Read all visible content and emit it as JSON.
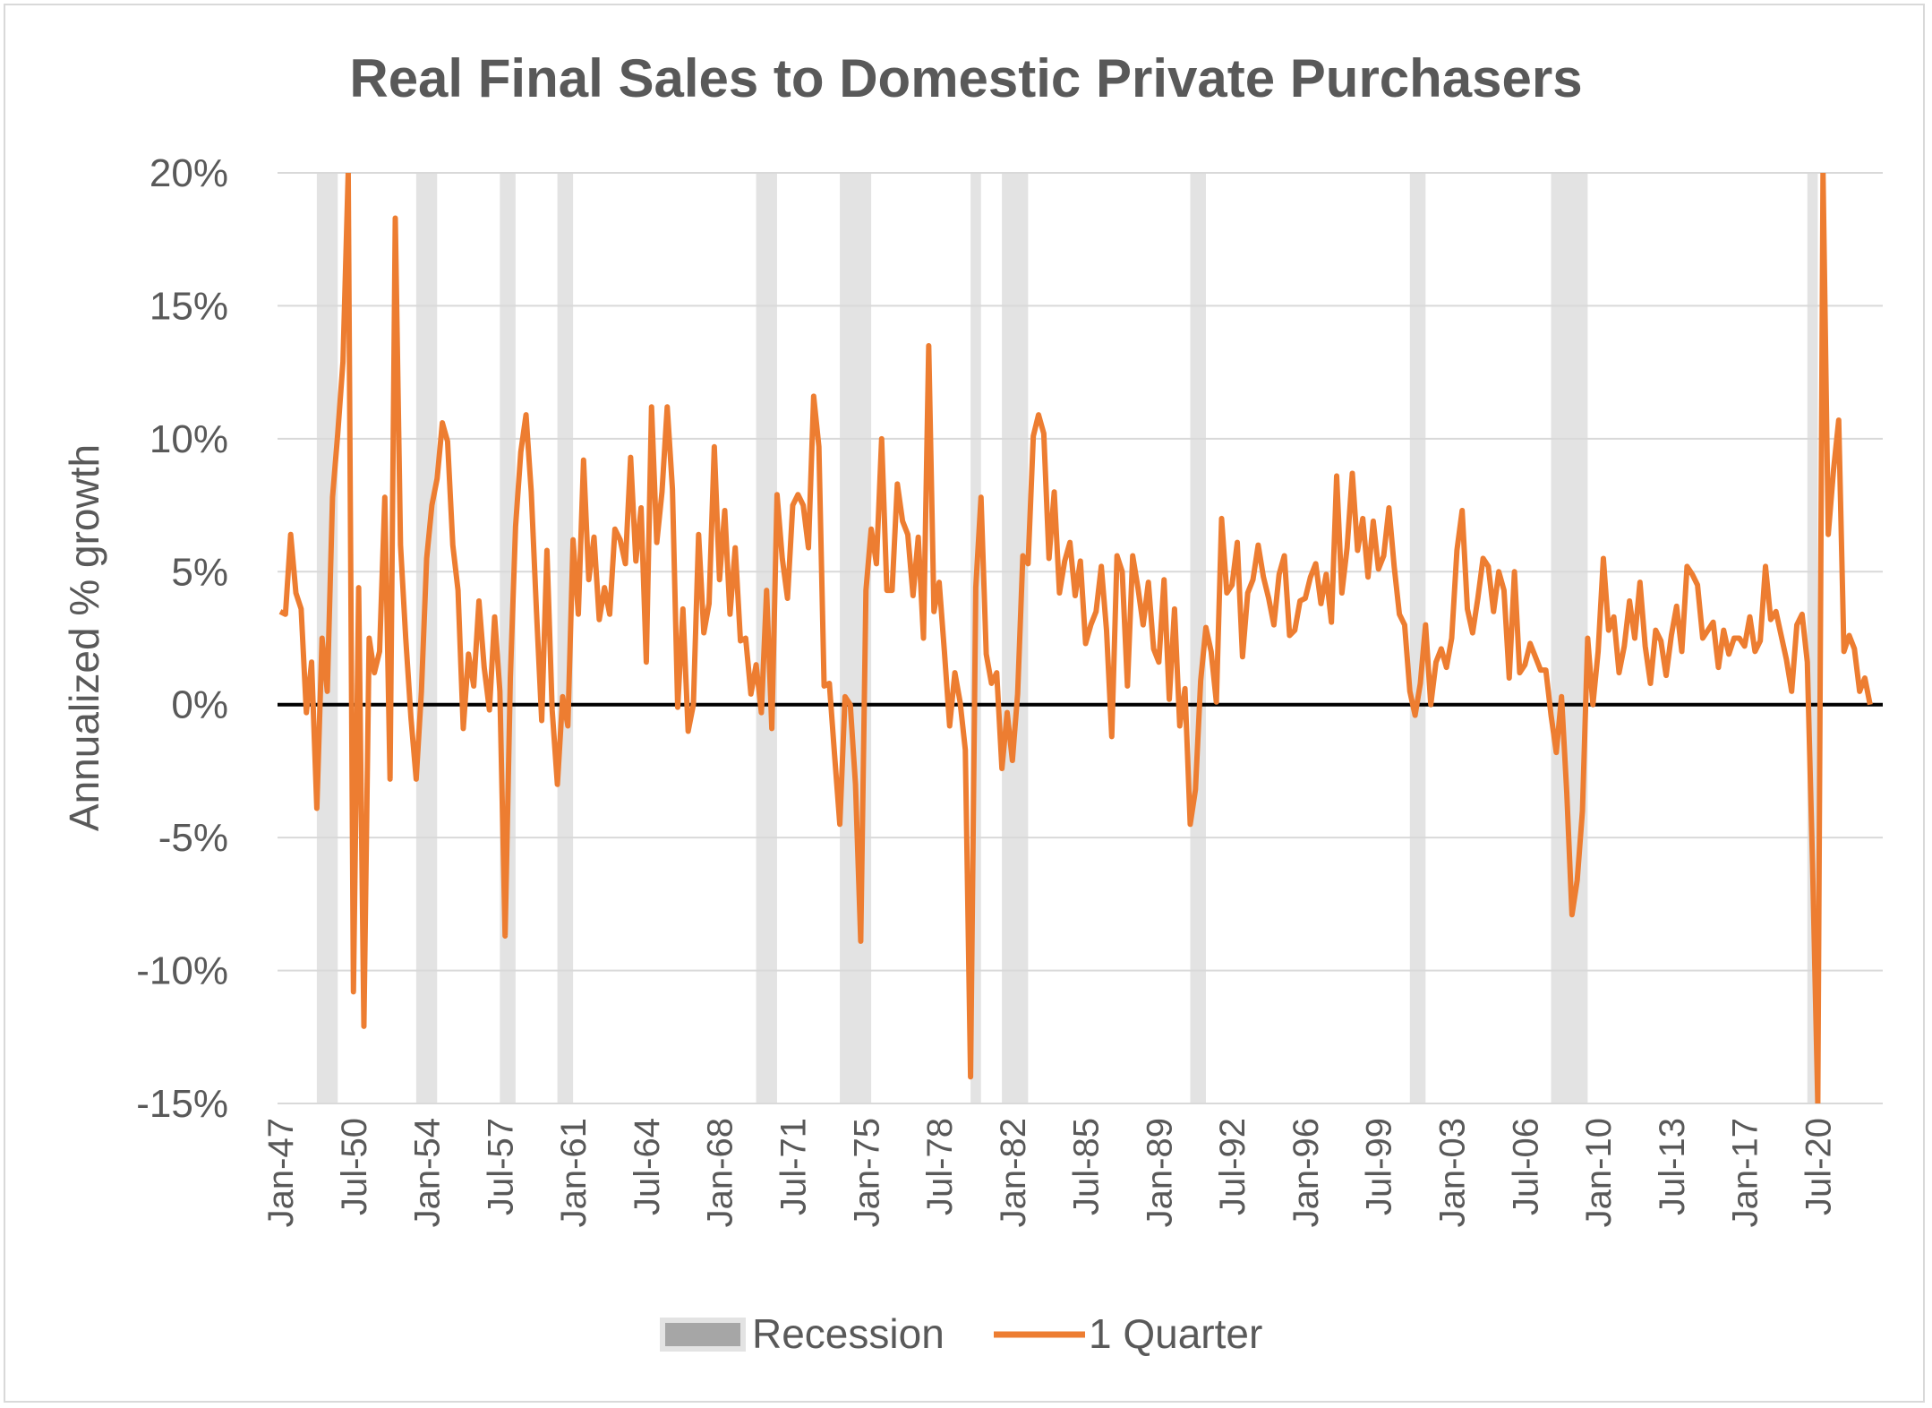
{
  "chart_data": {
    "type": "line",
    "title": "Real Final Sales to Domestic Private Purchasers",
    "xlabel": "",
    "ylabel": "Annualized % growth",
    "ylim": [
      -15,
      20
    ],
    "y_ticks": [
      20,
      15,
      10,
      5,
      0,
      -5,
      -10,
      -15
    ],
    "y_tick_labels": [
      "20%",
      "15%",
      "10%",
      "5%",
      "0%",
      "-5%",
      "-10%",
      "-15%"
    ],
    "x_start_year": 1947,
    "x_end_year": 2022.75,
    "x_ticks": [
      {
        "label": "Jan-47",
        "year": 1947.0
      },
      {
        "label": "Jul-50",
        "year": 1950.5
      },
      {
        "label": "Jan-54",
        "year": 1954.0
      },
      {
        "label": "Jul-57",
        "year": 1957.5
      },
      {
        "label": "Jan-61",
        "year": 1961.0
      },
      {
        "label": "Jul-64",
        "year": 1964.5
      },
      {
        "label": "Jan-68",
        "year": 1968.0
      },
      {
        "label": "Jul-71",
        "year": 1971.5
      },
      {
        "label": "Jan-75",
        "year": 1975.0
      },
      {
        "label": "Jul-78",
        "year": 1978.5
      },
      {
        "label": "Jan-82",
        "year": 1982.0
      },
      {
        "label": "Jul-85",
        "year": 1985.5
      },
      {
        "label": "Jan-89",
        "year": 1989.0
      },
      {
        "label": "Jul-92",
        "year": 1992.5
      },
      {
        "label": "Jan-96",
        "year": 1996.0
      },
      {
        "label": "Jul-99",
        "year": 1999.5
      },
      {
        "label": "Jan-03",
        "year": 2003.0
      },
      {
        "label": "Jul-06",
        "year": 2006.5
      },
      {
        "label": "Jan-10",
        "year": 2010.0
      },
      {
        "label": "Jul-13",
        "year": 2013.5
      },
      {
        "label": "Jan-17",
        "year": 2017.0
      },
      {
        "label": "Jul-20",
        "year": 2020.5
      }
    ],
    "recessions": [
      [
        1948.75,
        1949.75
      ],
      [
        1953.5,
        1954.5
      ],
      [
        1957.5,
        1958.25
      ],
      [
        1960.25,
        1961.0
      ],
      [
        1969.75,
        1970.75
      ],
      [
        1973.75,
        1975.25
      ],
      [
        1980.0,
        1980.5
      ],
      [
        1981.5,
        1982.75
      ],
      [
        1990.5,
        1991.25
      ],
      [
        2001.0,
        2001.75
      ],
      [
        2007.75,
        2009.5
      ],
      [
        2020.0,
        2020.5
      ]
    ],
    "series": [
      {
        "name": "1 Quarter",
        "color": "#ed7d31",
        "start_year": 1947.0,
        "step": 0.25,
        "values": [
          3.5,
          3.4,
          6.4,
          4.2,
          3.6,
          -0.3,
          1.6,
          -3.9,
          2.5,
          0.5,
          7.8,
          10.2,
          12.9,
          20.0,
          -10.8,
          4.4,
          -12.1,
          2.5,
          1.2,
          2.0,
          7.8,
          -2.8,
          18.3,
          6.0,
          2.5,
          -0.5,
          -2.8,
          0.5,
          5.5,
          7.5,
          8.5,
          10.6,
          9.9,
          6.0,
          4.3,
          -0.9,
          1.9,
          0.7,
          3.9,
          1.4,
          -0.2,
          3.3,
          0.5,
          -8.7,
          1.0,
          6.7,
          9.5,
          10.9,
          8.0,
          3.5,
          -0.6,
          5.8,
          -0.2,
          -3.0,
          0.3,
          -0.8,
          6.2,
          3.4,
          9.2,
          4.7,
          6.3,
          3.2,
          4.4,
          3.4,
          6.6,
          6.2,
          5.3,
          9.3,
          5.4,
          7.4,
          1.6,
          11.2,
          6.1,
          8.0,
          11.2,
          8.1,
          -0.1,
          3.6,
          -1.0,
          0.0,
          6.4,
          2.7,
          3.8,
          9.7,
          4.7,
          7.3,
          3.4,
          5.9,
          2.4,
          2.5,
          0.4,
          1.5,
          -0.3,
          4.3,
          -0.9,
          7.9,
          5.5,
          4.0,
          7.5,
          7.9,
          7.5,
          5.9,
          11.6,
          9.7,
          0.7,
          0.8,
          -1.9,
          -4.5,
          0.3,
          0.0,
          -3.0,
          -8.9,
          4.3,
          6.6,
          5.3,
          10.0,
          4.3,
          4.3,
          8.3,
          6.9,
          6.4,
          4.1,
          6.3,
          2.5,
          13.5,
          3.5,
          4.6,
          2.0,
          -0.8,
          1.2,
          0.1,
          -1.7,
          -14.0,
          4.4,
          7.8,
          1.9,
          0.8,
          1.2,
          -2.4,
          -0.3,
          -2.1,
          0.4,
          5.6,
          5.3,
          10.1,
          10.9,
          10.2,
          5.5,
          8.0,
          4.2,
          5.4,
          6.1,
          4.1,
          5.4,
          2.3,
          3.0,
          3.5,
          5.2,
          2.8,
          -1.2,
          5.6,
          5.0,
          0.7,
          5.6,
          4.4,
          3.0,
          4.6,
          2.1,
          1.6,
          4.7,
          0.2,
          3.6,
          -0.8,
          0.6,
          -4.5,
          -3.2,
          0.9,
          2.9,
          2.0,
          0.1,
          7.0,
          4.2,
          4.5,
          6.1,
          1.8,
          4.2,
          4.7,
          6.0,
          4.8,
          4.0,
          3.0,
          4.9,
          5.6,
          2.6,
          2.8,
          3.9,
          4.0,
          4.8,
          5.3,
          3.8,
          4.9,
          3.1,
          8.6,
          4.2,
          5.9,
          8.7,
          5.8,
          7.0,
          4.8,
          6.9,
          5.1,
          5.6,
          7.4,
          5.2,
          3.4,
          3.0,
          0.5,
          -0.4,
          0.8,
          3.0,
          0.0,
          1.6,
          2.1,
          1.4,
          2.5,
          5.8,
          7.3,
          3.6,
          2.7,
          4.0,
          5.5,
          5.2,
          3.5,
          5.0,
          4.3,
          1.0,
          5.0,
          1.2,
          1.5,
          2.3,
          1.8,
          1.3,
          1.3,
          -0.4,
          -1.8,
          0.3,
          -3.3,
          -7.9,
          -6.6,
          -4.0,
          2.5,
          0.0,
          2.0,
          5.5,
          2.8,
          3.3,
          1.2,
          2.2,
          3.9,
          2.5,
          4.6,
          2.2,
          0.8,
          2.8,
          2.4,
          1.1,
          2.6,
          3.7,
          2.0,
          5.2,
          4.9,
          4.5,
          2.5,
          2.8,
          3.1,
          1.4,
          2.8,
          1.9,
          2.5,
          2.5,
          2.2,
          3.3,
          2.0,
          2.4,
          5.2,
          3.2,
          3.5,
          2.6,
          1.7,
          0.5,
          3.0,
          3.4,
          1.6,
          -6.0,
          -15.0,
          20.0,
          6.4,
          8.8,
          10.7,
          2.0,
          2.6,
          2.1,
          0.5,
          1.0,
          0.0
        ]
      }
    ],
    "legend": [
      {
        "label": "Recession",
        "type": "box",
        "color": "#e3e3e3"
      },
      {
        "label": "1 Quarter",
        "type": "line",
        "color": "#ed7d31"
      }
    ],
    "legend_position": "bottom-center",
    "grid": true
  }
}
